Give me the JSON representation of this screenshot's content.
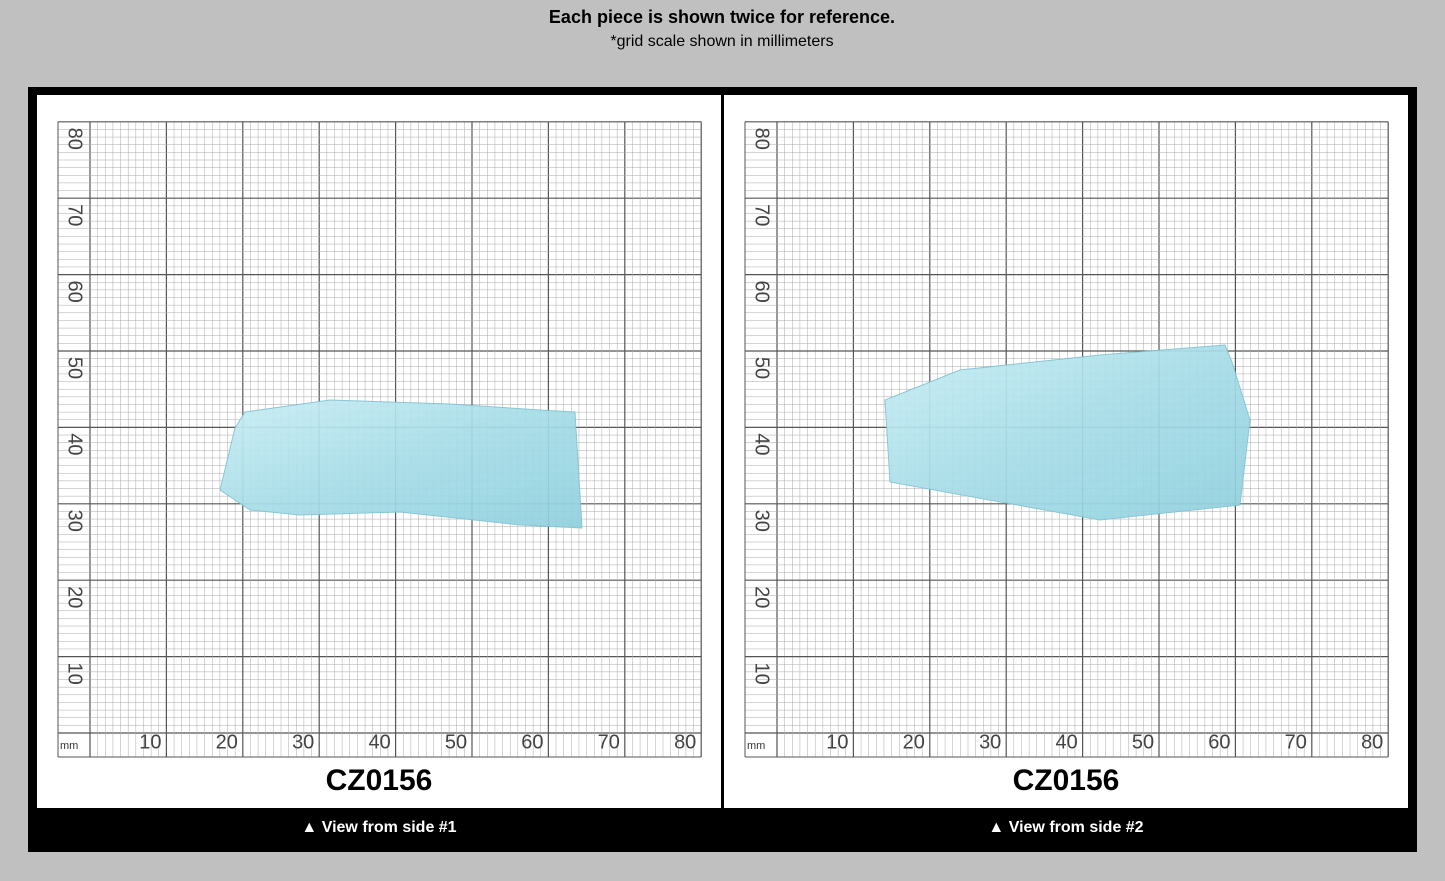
{
  "header": {
    "title": "Each piece is shown twice for reference.",
    "subtitle": "*grid scale shown in millimeters"
  },
  "panels": [
    {
      "unit": "mm",
      "x_labels": [
        10,
        20,
        30,
        40,
        50,
        60,
        70,
        80
      ],
      "y_labels": [
        10,
        20,
        30,
        40,
        50,
        60,
        70,
        80
      ],
      "code": "CZ0156",
      "caption": "▲ View from side #1"
    },
    {
      "unit": "mm",
      "x_labels": [
        10,
        20,
        30,
        40,
        50,
        60,
        70,
        80
      ],
      "y_labels": [
        10,
        20,
        30,
        40,
        50,
        60,
        70,
        80
      ],
      "code": "CZ0156",
      "caption": "▲ View from side #2"
    }
  ]
}
